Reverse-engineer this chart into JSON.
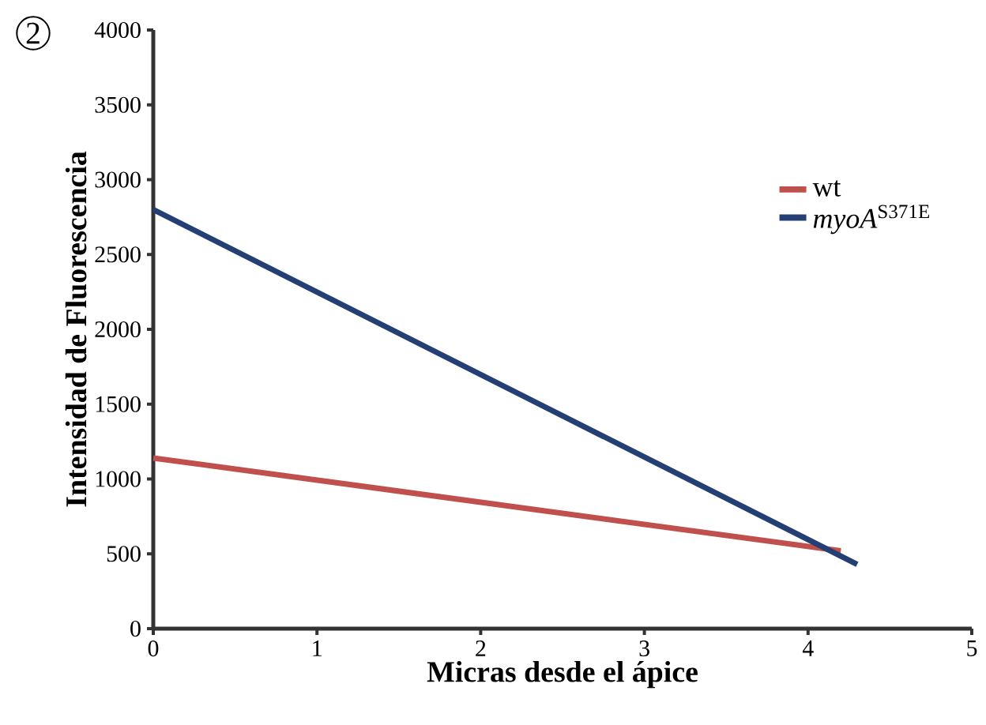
{
  "chart_data": {
    "type": "line",
    "xlabel": "Micras desde el ápice",
    "ylabel": "Intensidad de Fluorescencia",
    "annotations": [
      "2"
    ],
    "series": [
      {
        "name": "wt",
        "color": "#c0504d",
        "x": [
          0,
          4.2
        ],
        "values": [
          1140,
          520
        ]
      },
      {
        "name": "*myoA*$^{S371E}$",
        "color": "#243f73",
        "x": [
          0,
          4.3
        ],
        "values": [
          2800,
          430
        ]
      }
    ],
    "xlim": [
      0,
      5
    ],
    "xticks": [
      0,
      1,
      2,
      3,
      4,
      5
    ],
    "ylim": [
      0,
      4000
    ],
    "yticks": [
      0,
      500,
      1000,
      1500,
      2000,
      2500,
      3000,
      3500,
      4000
    ],
    "grid": false,
    "legend": "right",
    "marker": "none",
    "line_style": "solid"
  }
}
